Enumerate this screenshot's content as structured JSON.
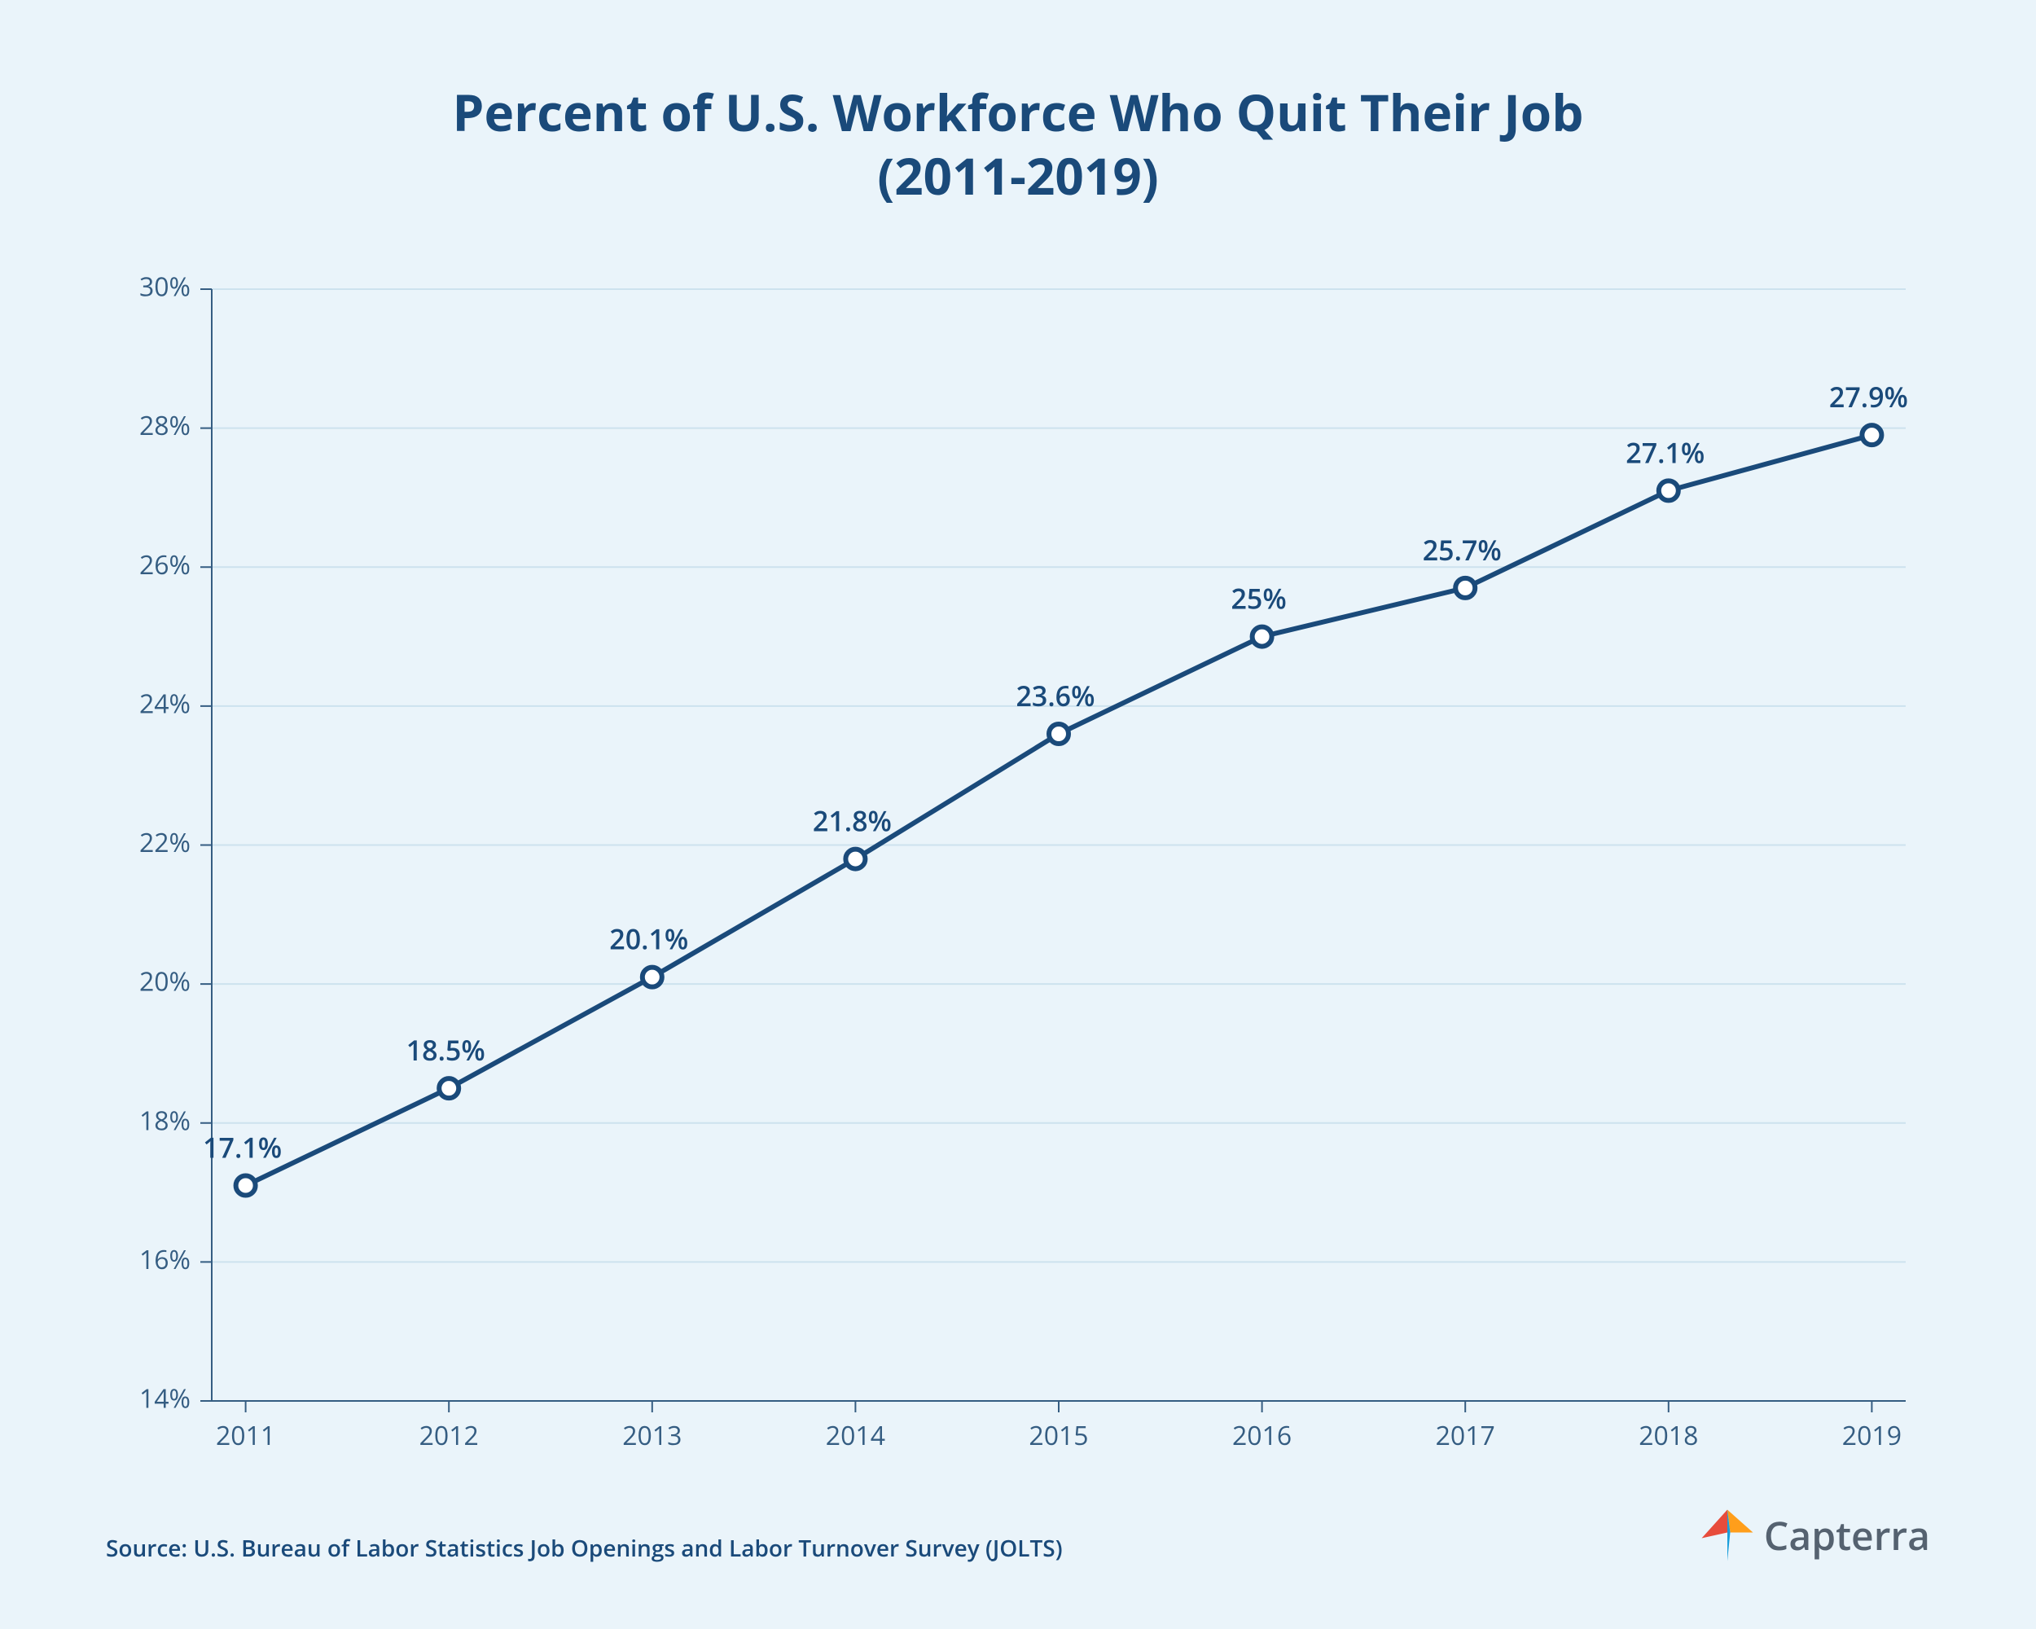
{
  "title_line1": "Percent of U.S. Workforce Who Quit Their Job",
  "title_line2": "(2011-2019)",
  "title_fontsize": 62,
  "title_color": "#1a4a7a",
  "source_text": "Source: U.S. Bureau of Labor Statistics Job Openings and Labor Turnover Survey (JOLTS)",
  "source_fontsize": 28,
  "logo_text": "Capterra",
  "logo_fontsize": 48,
  "logo_text_color": "#556270",
  "logo_colors": {
    "orange": "#ff9e1b",
    "blue": "#1a9edb",
    "red": "#e74c3c"
  },
  "chart": {
    "type": "line",
    "background_color": "#eaf4fa",
    "x_categories": [
      "2011",
      "2012",
      "2013",
      "2014",
      "2015",
      "2016",
      "2017",
      "2018",
      "2019"
    ],
    "y_values": [
      17.1,
      18.5,
      20.1,
      21.8,
      23.6,
      25.0,
      25.7,
      27.1,
      27.9
    ],
    "point_labels": [
      "17.1%",
      "18.5%",
      "20.1%",
      "21.8%",
      "23.6%",
      "25%",
      "25.7%",
      "27.1%",
      "27.9%"
    ],
    "ylim": [
      14,
      30
    ],
    "ytick_step": 2,
    "y_tick_labels": [
      "14%",
      "16%",
      "18%",
      "20%",
      "22%",
      "24%",
      "26%",
      "28%",
      "30%"
    ],
    "line_color": "#1a4a7a",
    "line_width": 6,
    "marker_fill": "#ffffff",
    "marker_stroke": "#1a4a7a",
    "marker_stroke_width": 6,
    "marker_radius": 12,
    "grid_color": "#cde2ee",
    "axis_label_color": "#355d82",
    "axis_label_fontsize": 32,
    "data_label_color": "#1a4a7a",
    "data_label_fontsize": 34,
    "data_label_fontweight": "600",
    "tick_len": 14
  }
}
